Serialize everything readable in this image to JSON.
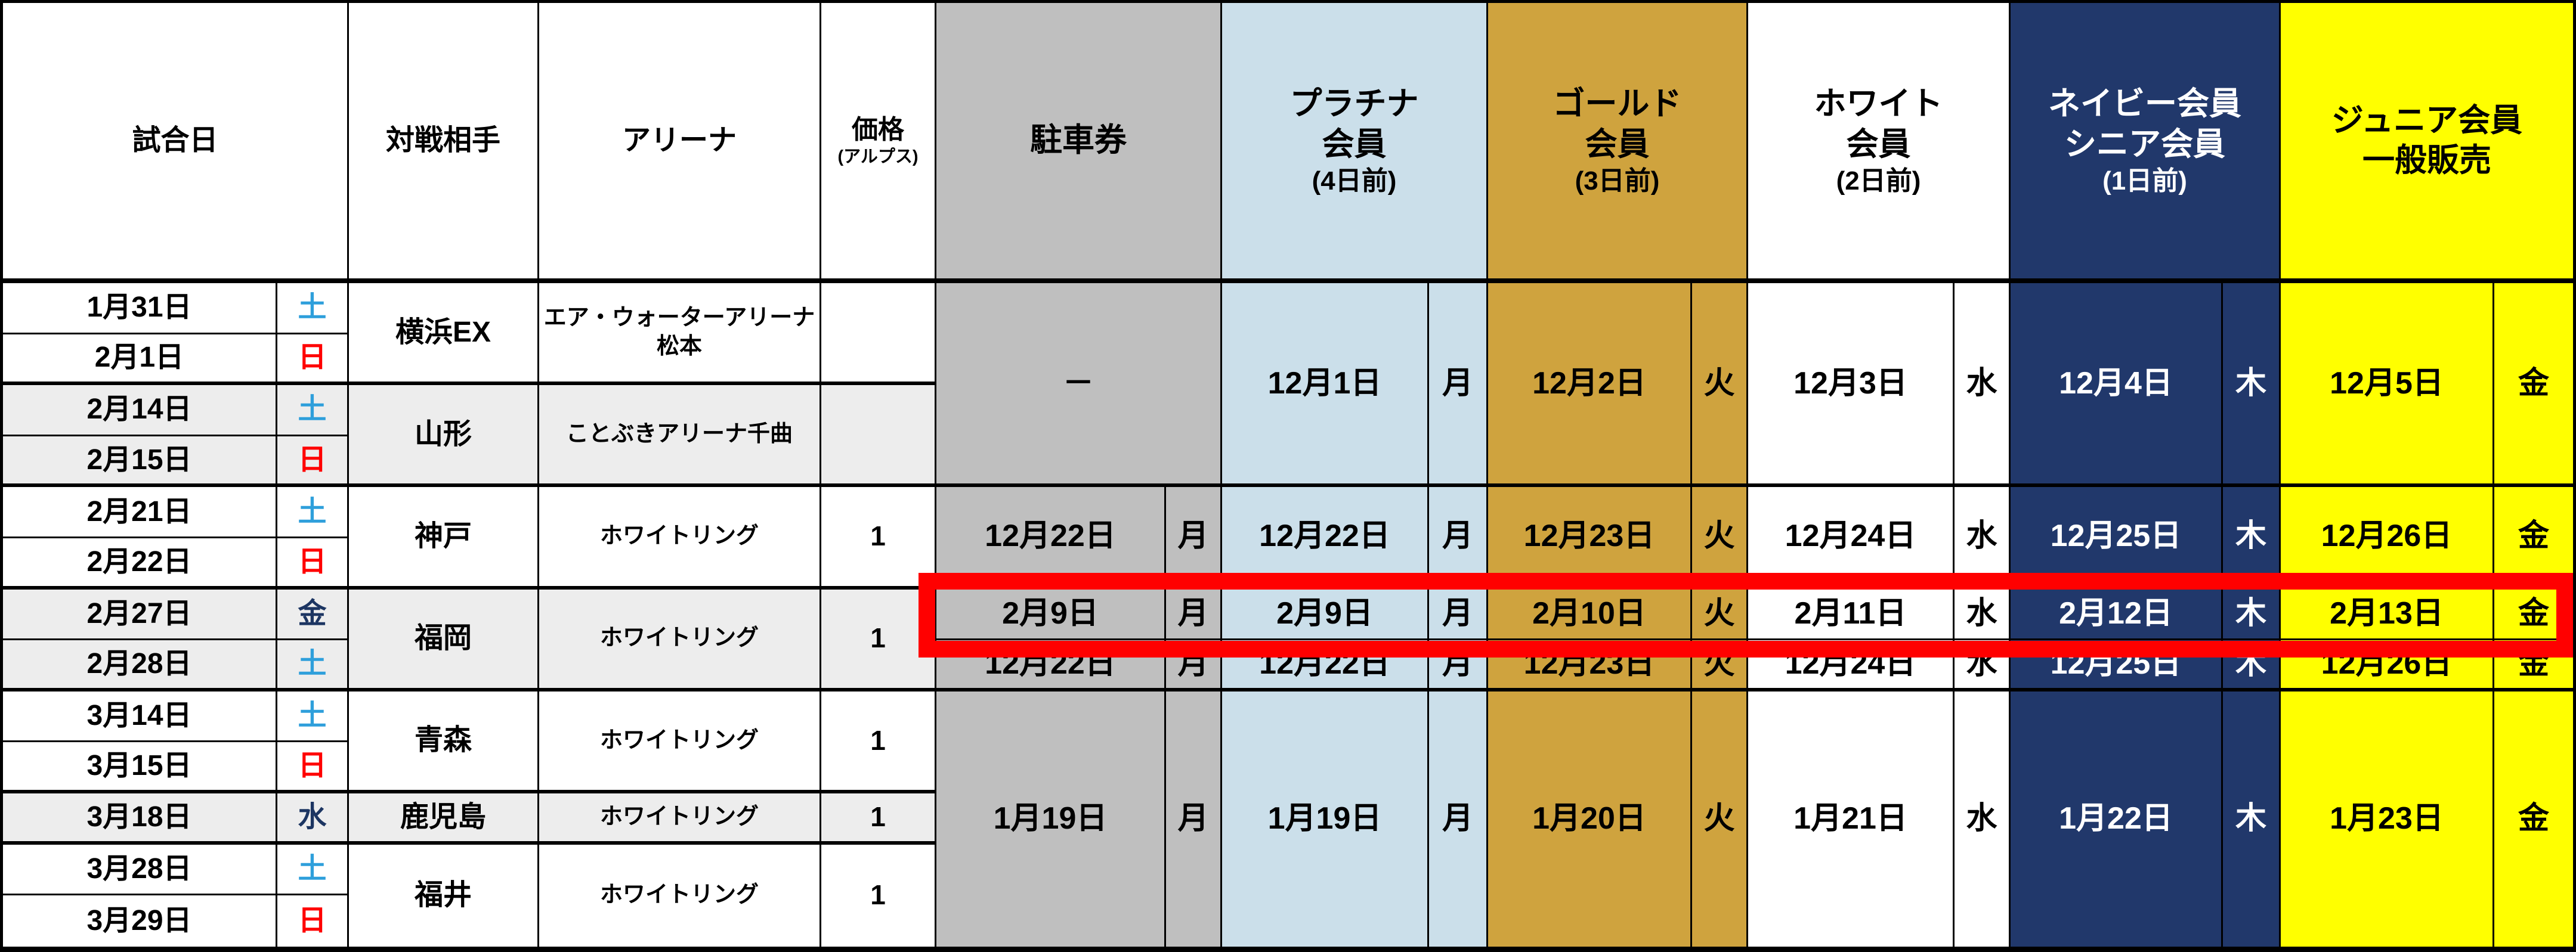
{
  "header": {
    "match_date": "試合日",
    "opponent": "対戦相手",
    "arena": "アリーナ",
    "price": {
      "l1": "価格",
      "l2": "(アルプス)"
    },
    "parking": "駐車券",
    "platinum": {
      "l1": "プラチナ",
      "l2": "会員",
      "l3": "(4日前)"
    },
    "gold": {
      "l1": "ゴールド",
      "l2": "会員",
      "l3": "(3日前)"
    },
    "white": {
      "l1": "ホワイト",
      "l2": "会員",
      "l3": "(2日前)"
    },
    "navy": {
      "l1": "ネイビー会員",
      "l2": "シニア会員",
      "l3": "(1日前)"
    },
    "junior": {
      "l1": "ジュニア会員",
      "l2": "一般販売"
    }
  },
  "rows": [
    {
      "date": "1月31日",
      "dow": "土"
    },
    {
      "date": "2月1日",
      "dow": "日"
    },
    {
      "date": "2月14日",
      "dow": "土"
    },
    {
      "date": "2月15日",
      "dow": "日"
    },
    {
      "date": "2月21日",
      "dow": "土"
    },
    {
      "date": "2月22日",
      "dow": "日"
    },
    {
      "date": "2月27日",
      "dow": "金"
    },
    {
      "date": "2月28日",
      "dow": "土"
    },
    {
      "date": "3月14日",
      "dow": "土"
    },
    {
      "date": "3月15日",
      "dow": "日"
    },
    {
      "date": "3月18日",
      "dow": "水"
    },
    {
      "date": "3月28日",
      "dow": "土"
    },
    {
      "date": "3月29日",
      "dow": "日"
    }
  ],
  "opponents": [
    {
      "name": "横浜EX",
      "arena": "エア・ウォーターアリーナ\n松本",
      "price": ""
    },
    {
      "name": "山形",
      "arena": "ことぶきアリーナ千曲",
      "price": ""
    },
    {
      "name": "神戸",
      "arena": "ホワイトリング",
      "price": "1"
    },
    {
      "name": "福岡",
      "arena": "ホワイトリング",
      "price": "1"
    },
    {
      "name": "青森",
      "arena": "ホワイトリング",
      "price": "1"
    },
    {
      "name": "鹿児島",
      "arena": "ホワイトリング",
      "price": "1"
    },
    {
      "name": "福井",
      "arena": "ホワイトリング",
      "price": "1"
    }
  ],
  "sales": {
    "A": {
      "parking_dash": "－",
      "platinum": {
        "date": "12月1日",
        "dow": "月"
      },
      "gold": {
        "date": "12月2日",
        "dow": "火"
      },
      "white": {
        "date": "12月3日",
        "dow": "水"
      },
      "navy": {
        "date": "12月4日",
        "dow": "木"
      },
      "junior": {
        "date": "12月5日",
        "dow": "金"
      }
    },
    "B": {
      "parking": {
        "date": "12月22日",
        "dow": "月"
      },
      "platinum": {
        "date": "12月22日",
        "dow": "月"
      },
      "gold": {
        "date": "12月23日",
        "dow": "火"
      },
      "white": {
        "date": "12月24日",
        "dow": "水"
      },
      "navy": {
        "date": "12月25日",
        "dow": "木"
      },
      "junior": {
        "date": "12月26日",
        "dow": "金"
      }
    },
    "C": {
      "parking": {
        "date": "2月9日",
        "dow": "月"
      },
      "platinum": {
        "date": "2月9日",
        "dow": "月"
      },
      "gold": {
        "date": "2月10日",
        "dow": "火"
      },
      "white": {
        "date": "2月11日",
        "dow": "水"
      },
      "navy": {
        "date": "2月12日",
        "dow": "木"
      },
      "junior": {
        "date": "2月13日",
        "dow": "金"
      }
    },
    "D": {
      "parking": {
        "date": "12月22日",
        "dow": "月"
      },
      "platinum": {
        "date": "12月22日",
        "dow": "月"
      },
      "gold": {
        "date": "12月23日",
        "dow": "火"
      },
      "white": {
        "date": "12月24日",
        "dow": "水"
      },
      "navy": {
        "date": "12月25日",
        "dow": "木"
      },
      "junior": {
        "date": "12月26日",
        "dow": "金"
      }
    },
    "E": {
      "parking": {
        "date": "1月19日",
        "dow": "月"
      },
      "platinum": {
        "date": "1月19日",
        "dow": "月"
      },
      "gold": {
        "date": "1月20日",
        "dow": "火"
      },
      "white": {
        "date": "1月21日",
        "dow": "水"
      },
      "navy": {
        "date": "1月22日",
        "dow": "木"
      },
      "junior": {
        "date": "1月23日",
        "dow": "金"
      }
    }
  },
  "colors": {
    "parking_gray": "#BFBFBF",
    "platinum_blue": "#CBDFEA",
    "gold": "#CFA33E",
    "navy": "#21386B",
    "junior_yellow": "#FFFF00",
    "band_gray": "#EDEDED",
    "saturday_blue": "#2E9FDB",
    "sunday_red": "#FF0000",
    "weekday_navy": "#1C3562",
    "highlight_red": "#FF0000"
  }
}
